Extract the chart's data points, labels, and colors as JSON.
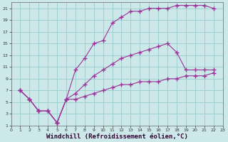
{
  "bg_color": "#cce8e8",
  "line_color": "#993399",
  "grid_color": "#99cccc",
  "xlabel": "Windchill (Refroidissement éolien,°C)",
  "xlabel_fontsize": 6.5,
  "xlim": [
    0,
    23
  ],
  "ylim": [
    1,
    22
  ],
  "yticks": [
    1,
    3,
    5,
    7,
    9,
    11,
    13,
    15,
    17,
    19,
    21
  ],
  "xticks": [
    0,
    1,
    2,
    3,
    4,
    5,
    6,
    7,
    8,
    9,
    10,
    11,
    12,
    13,
    14,
    15,
    16,
    17,
    18,
    19,
    20,
    21,
    22,
    23
  ],
  "line1_x": [
    1,
    2,
    3,
    4,
    5,
    6,
    7,
    8,
    9,
    10,
    11,
    12,
    13,
    14,
    15,
    16,
    17,
    18,
    19,
    20,
    21,
    22
  ],
  "line1_y": [
    7.0,
    5.5,
    3.5,
    3.5,
    1.5,
    5.5,
    10.5,
    12.5,
    15.0,
    15.5,
    18.5,
    19.5,
    20.5,
    20.5,
    21.0,
    21.0,
    21.0,
    21.5,
    21.5,
    21.5,
    21.5,
    21.0
  ],
  "line2_x": [
    1,
    2,
    3,
    4,
    5,
    6,
    7,
    8,
    9,
    10,
    11,
    12,
    13,
    14,
    15,
    16,
    17,
    18,
    19,
    20,
    21,
    22
  ],
  "line2_y": [
    7.0,
    5.5,
    3.5,
    3.5,
    1.5,
    5.5,
    6.5,
    8.0,
    9.5,
    10.5,
    11.5,
    12.5,
    13.0,
    13.5,
    14.0,
    14.5,
    15.0,
    13.5,
    10.5,
    10.5,
    10.5,
    10.5
  ],
  "line3_x": [
    1,
    2,
    3,
    4,
    5,
    6,
    7,
    8,
    9,
    10,
    11,
    12,
    13,
    14,
    15,
    16,
    17,
    18,
    19,
    20,
    21,
    22
  ],
  "line3_y": [
    7.0,
    5.5,
    3.5,
    3.5,
    1.5,
    5.5,
    5.5,
    6.0,
    6.5,
    7.0,
    7.5,
    8.0,
    8.0,
    8.5,
    8.5,
    8.5,
    9.0,
    9.0,
    9.5,
    9.5,
    9.5,
    10.0
  ]
}
